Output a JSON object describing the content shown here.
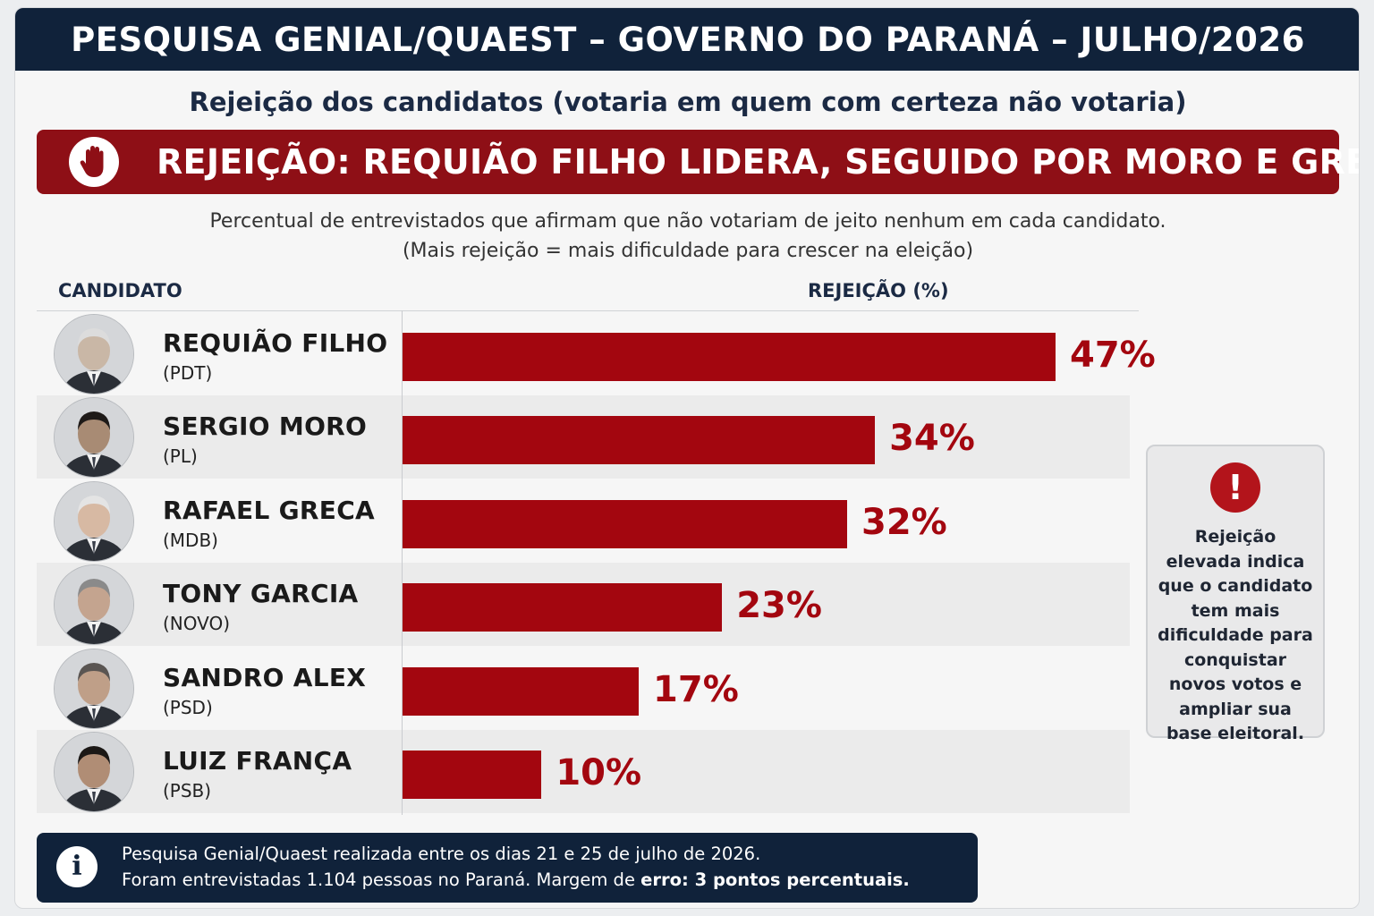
{
  "header": {
    "title": "PESQUISA GENIAL/QUAEST – GOVERNO DO PARANÁ – JULHO/2026",
    "subtitle": "Rejeição dos candidatos (votaria em quem com certeza não votaria)"
  },
  "banner": {
    "text": "REJEIÇÃO: REQUIÃO FILHO LIDERA, SEGUIDO POR MORO E GRECA",
    "icon": "hand-stop-icon"
  },
  "description": {
    "line1": "Percentual de entrevistados que afirmam que não votariam de jeito nenhum em cada candidato.",
    "line2": "(Mais rejeição = mais dificuldade para crescer na eleição)"
  },
  "columns": {
    "candidate": "CANDIDATO",
    "rejection": "REJEIÇÃO (%)"
  },
  "chart_data": {
    "type": "bar",
    "orientation": "horizontal",
    "title": "REJEIÇÃO (%)",
    "categories": [
      "REQUIÃO FILHO",
      "SERGIO MORO",
      "RAFAEL GRECA",
      "TONY GARCIA",
      "SANDRO ALEX",
      "LUIZ FRANÇA"
    ],
    "parties": [
      "(PDT)",
      "(PL)",
      "(MDB)",
      "(NOVO)",
      "(PSD)",
      "(PSB)"
    ],
    "values": [
      47,
      34,
      32,
      23,
      17,
      10
    ],
    "value_labels": [
      "47%",
      "34%",
      "32%",
      "23%",
      "17%",
      "10%"
    ],
    "xlim": [
      0,
      47
    ],
    "bar_color": "#a3060f",
    "grid": false
  },
  "sidenote": {
    "icon": "exclamation-icon",
    "text": "Rejeição elevada indica que o candidato tem mais dificuldade para conquistar novos votos e ampliar sua base eleitoral."
  },
  "footer": {
    "icon": "info-icon",
    "line1": "Pesquisa Genial/Quaest realizada entre os dias 21 e 25 de julho de 2026.",
    "line2_prefix": "Foram entrevistadas 1.104 pessoas no Paraná. Margem de ",
    "line2_bold": "erro: 3 pontos percentuais."
  },
  "colors": {
    "navy": "#10223a",
    "banner_red": "#8e0f16",
    "bar_red": "#a3060f"
  }
}
